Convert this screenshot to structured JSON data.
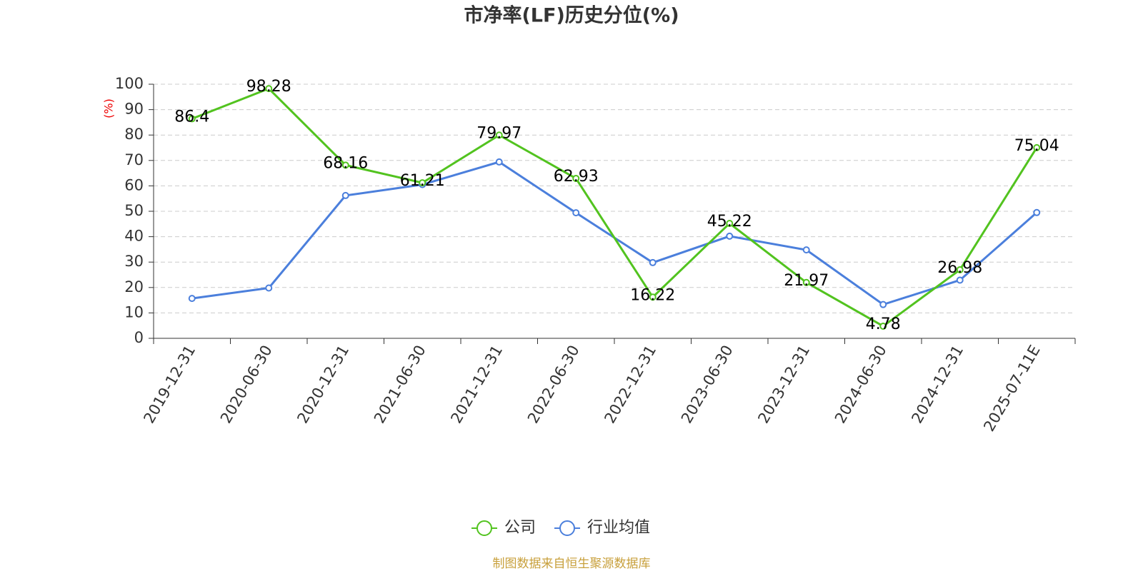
{
  "chart_data": {
    "type": "line",
    "title": "市净率(LF)历史分位(%)",
    "y_label": "(%)",
    "source": "制图数据来自恒生聚源数据库",
    "categories": [
      "2019-12-31",
      "2020-06-30",
      "2020-12-31",
      "2021-06-30",
      "2021-12-31",
      "2022-06-30",
      "2022-12-31",
      "2023-06-30",
      "2023-12-31",
      "2024-06-30",
      "2024-12-31",
      "2025-07-11E"
    ],
    "series": [
      {
        "name": "公司",
        "color": "#52c31f",
        "values": [
          86.4,
          98.28,
          68.16,
          61.21,
          79.97,
          62.93,
          16.22,
          45.22,
          21.97,
          4.78,
          26.98,
          75.04
        ],
        "show_labels": true
      },
      {
        "name": "行业均值",
        "color": "#4b7fdc",
        "values": [
          15.7,
          19.8,
          56.2,
          60.5,
          69.4,
          49.4,
          29.8,
          40.2,
          34.8,
          13.3,
          22.9,
          49.5
        ],
        "show_labels": false
      }
    ],
    "ylim": [
      0,
      100
    ],
    "yticks": [
      0,
      10,
      20,
      30,
      40,
      50,
      60,
      70,
      80,
      90,
      100
    ],
    "grid": true
  }
}
